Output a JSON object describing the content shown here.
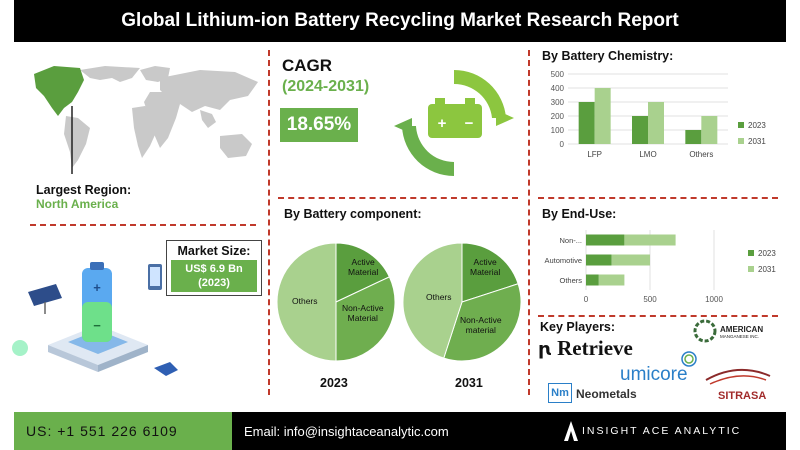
{
  "header": {
    "title": "Global Lithium-ion Battery Recycling Market Research Report"
  },
  "region": {
    "label": "Largest Region:",
    "value": "North America"
  },
  "market_size": {
    "label": "Market Size:",
    "value_line1": "US$ 6.9 Bn",
    "value_line2": "(2023)"
  },
  "cagr": {
    "label": "CAGR",
    "period": "(2024-2031)",
    "value": "18.65%"
  },
  "component": {
    "title": "By Battery component:",
    "label_2023": "2023",
    "label_2031": "2031",
    "slices_2023": [
      {
        "label": "Active Material",
        "l1": "Active",
        "l2": "Material"
      },
      {
        "label": "Non-Active Material",
        "l1": "Non-Active",
        "l2": "Material"
      },
      {
        "label": "Others",
        "l1": "Others",
        "l2": ""
      }
    ],
    "slices_2031": [
      {
        "label": "Active Material",
        "l1": "Active",
        "l2": "Material"
      },
      {
        "label": "Non-Active material",
        "l1": "Non-Active",
        "l2": "material"
      },
      {
        "label": "Others",
        "l1": "Others",
        "l2": ""
      }
    ]
  },
  "chemistry": {
    "title": "By Battery Chemistry:"
  },
  "enduse": {
    "title": "By End-Use:"
  },
  "key_players": {
    "title": "Key Players:",
    "logos": [
      "Retrieve",
      "umicore",
      "AMERICAN",
      "MANGANESE INC.",
      "Neometals",
      "Nm",
      "SITRASA"
    ]
  },
  "footer": {
    "phone": "US: +1 551 226 6109",
    "email": "Email: info@insightaceanalytic.com",
    "brand": "INSIGHT ACE ANALYTIC"
  },
  "colors": {
    "dark_green": "#5a9e3e",
    "light_green": "#a9d18e",
    "accent": "#6ab04c",
    "divider": "#c0392b"
  },
  "chart_data": [
    {
      "type": "bar",
      "title": "By Battery Chemistry:",
      "categories": [
        "LFP",
        "LMO",
        "Others"
      ],
      "series": [
        {
          "name": "2023",
          "values": [
            300,
            200,
            100
          ]
        },
        {
          "name": "2031",
          "values": [
            400,
            300,
            200
          ]
        }
      ],
      "ylim": [
        0,
        500
      ],
      "yticks": [
        0,
        100,
        200,
        300,
        400,
        500
      ],
      "grid": true,
      "legend": "right"
    },
    {
      "type": "bar",
      "orientation": "horizontal",
      "title": "By End-Use:",
      "categories": [
        "Non-...",
        "Automotive",
        "Others"
      ],
      "series": [
        {
          "name": "2023",
          "values": [
            300,
            200,
            100
          ]
        },
        {
          "name": "2031",
          "values": [
            400,
            300,
            200
          ]
        }
      ],
      "xlim": [
        0,
        1000
      ],
      "xticks": [
        0,
        500,
        1000
      ],
      "grid": true,
      "legend": "right"
    },
    {
      "type": "pie",
      "title": "2023",
      "labels": [
        "Active Material",
        "Non-Active Material",
        "Others"
      ],
      "values": [
        18,
        32,
        50
      ]
    },
    {
      "type": "pie",
      "title": "2031",
      "labels": [
        "Active Material",
        "Non-Active material",
        "Others"
      ],
      "values": [
        20,
        35,
        45
      ]
    }
  ]
}
